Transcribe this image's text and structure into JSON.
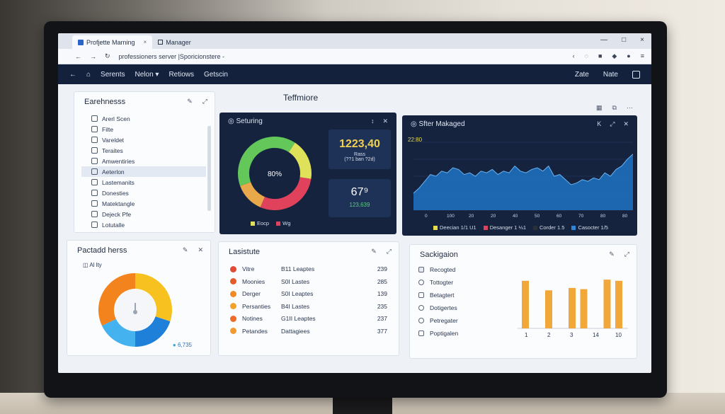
{
  "browser": {
    "tabs": [
      {
        "label": "Profjette Marning",
        "close": "×"
      },
      {
        "label": "Manager"
      }
    ],
    "window_controls": [
      "—",
      "□",
      "×"
    ],
    "url": "professioners server |Sporicionstere -",
    "tool_icons": [
      "back-arrow-icon",
      "refresh-icon",
      "bookmark-icon",
      "extension-icon",
      "profile-icon",
      "menu-icon"
    ]
  },
  "appbar": {
    "nav": [
      "Serents",
      "Nelon ▾",
      "Retiows",
      "Getscin"
    ],
    "right": [
      "Zate",
      "Nate"
    ]
  },
  "left_panel": {
    "title": "Earehnesss",
    "items": [
      {
        "label": "Arerl Scen"
      },
      {
        "label": "Filte"
      },
      {
        "label": "Vareldet"
      },
      {
        "label": "Teraites"
      },
      {
        "label": "Amwentiries"
      },
      {
        "label": "Aeterlon"
      },
      {
        "label": "Lastemanits"
      },
      {
        "label": "Donesties"
      },
      {
        "label": "Matektangle"
      },
      {
        "label": "Dejeck Pfe"
      },
      {
        "label": "Lotutalle"
      }
    ],
    "active_index": 5
  },
  "section_title": "Teffmiore",
  "setting_card": {
    "title": "Seturing",
    "donut_label": "80%",
    "stat1_value": "1223,40",
    "stat1_sub": "Rass\n(??1 ban ?2d)",
    "stat2_value": "67⁹",
    "stat2_sub": "123,639",
    "legend": [
      "Eocp",
      "Wg"
    ],
    "colors": {
      "green": "#63c75a",
      "yellow": "#dfe15a",
      "red": "#e0425c",
      "orange": "#e9a84a"
    }
  },
  "managed_card": {
    "title": "Sfter Makaged",
    "value_label": "22:80",
    "x_ticks": [
      "0",
      "100",
      "20",
      "20",
      "40",
      "50",
      "60",
      "70",
      "80",
      "80"
    ],
    "y_ticks": [
      "",
      "",
      "",
      "",
      ""
    ],
    "legend": [
      "Deecian 1/1 U1",
      "Desanger 1 ⅓1",
      "Corder 1.5",
      "Casocter 1/5"
    ],
    "legend_colors": [
      "#e8dc4a",
      "#e0425c",
      "#2a2f38",
      "#2f86d6"
    ]
  },
  "chart_data": {
    "type": "area",
    "title": "Sfter Makaged",
    "x": [
      0,
      1,
      2,
      3,
      4,
      5,
      6,
      7,
      8,
      9,
      10,
      11,
      12,
      13,
      14,
      15,
      16,
      17,
      18,
      19,
      20,
      21,
      22,
      23,
      24,
      25,
      26,
      27,
      28,
      29,
      30,
      31,
      32,
      33,
      34,
      35,
      36,
      37,
      38,
      39
    ],
    "y": [
      20,
      26,
      34,
      42,
      40,
      46,
      44,
      50,
      48,
      42,
      44,
      40,
      46,
      44,
      48,
      42,
      46,
      44,
      52,
      46,
      44,
      48,
      50,
      46,
      52,
      40,
      42,
      36,
      30,
      32,
      36,
      34,
      38,
      36,
      44,
      40,
      48,
      52,
      60,
      66
    ],
    "ylim": [
      0,
      80
    ],
    "fill_color": "#1f73c4"
  },
  "pie_card": {
    "title": "Pactadd herss",
    "subtitle": "Al lty",
    "footer": "6,735",
    "slices": [
      {
        "value": 30,
        "color": "#f7c21f"
      },
      {
        "value": 20,
        "color": "#1e80d8"
      },
      {
        "value": 18,
        "color": "#43b2ef"
      },
      {
        "value": 32,
        "color": "#f2831d"
      }
    ]
  },
  "list_card": {
    "title": "Lasistute",
    "rows": [
      {
        "name": "Vitre",
        "desc": "B11 Leaptes",
        "value": "239",
        "color": "#e24b3a"
      },
      {
        "name": "Moonies",
        "desc": "S0I Lastes",
        "value": "285",
        "color": "#e65a2a"
      },
      {
        "name": "Derger",
        "desc": "S0I Leaptes",
        "value": "139",
        "color": "#ef8a25"
      },
      {
        "name": "Persanties",
        "desc": "B4I Lastes",
        "value": "235",
        "color": "#f2a22a"
      },
      {
        "name": "Notines",
        "desc": "G1II Leaptes",
        "value": "237",
        "color": "#ee6a2a"
      },
      {
        "name": "Petandes",
        "desc": "Dattagiees",
        "value": "377",
        "color": "#f39a2f"
      }
    ]
  },
  "bars_card": {
    "title": "Sackigaion",
    "rows": [
      {
        "label": "Recogted",
        "kind": "icon"
      },
      {
        "label": "Tottogter",
        "kind": "radio"
      },
      {
        "label": "Betagtert",
        "kind": "square"
      },
      {
        "label": "Dotigertes",
        "kind": "radio"
      },
      {
        "label": "Petregater",
        "kind": "radio"
      },
      {
        "label": "Poptigalen",
        "kind": "square"
      }
    ],
    "bar_values": [
      80,
      0,
      64,
      0,
      68,
      66,
      0,
      82,
      80
    ],
    "x_ticks": [
      "1",
      "2",
      "3",
      "14",
      "10"
    ],
    "bar_color": "#f2a73a"
  }
}
